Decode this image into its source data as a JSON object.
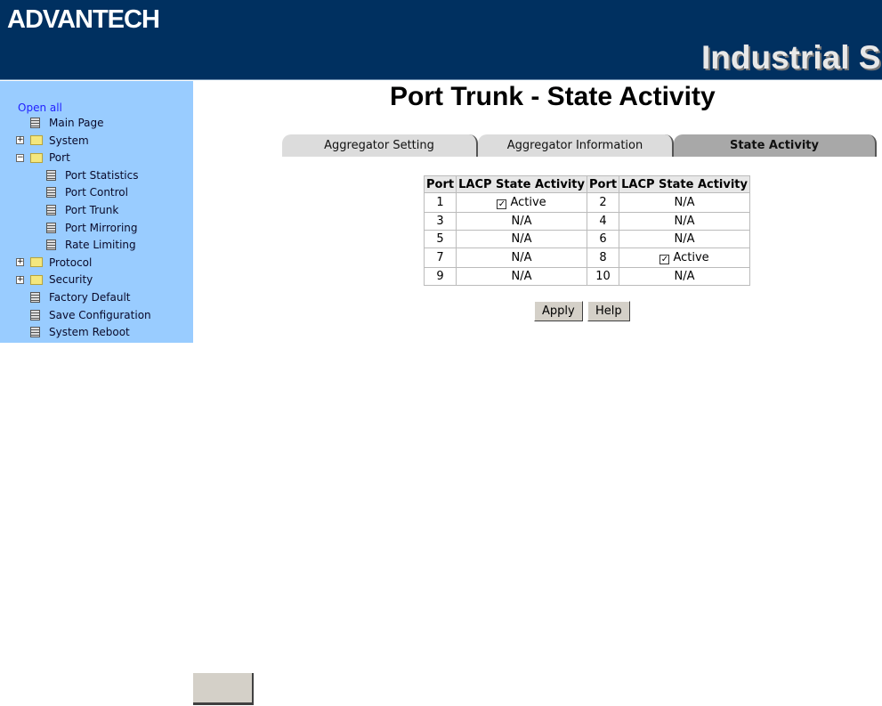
{
  "header": {
    "logo": "ADVANTECH",
    "product": "Industrial S"
  },
  "sidebar": {
    "open_all": "Open all",
    "items": [
      {
        "label": "Main Page",
        "type": "doc",
        "level": 0
      },
      {
        "label": "System",
        "type": "folder",
        "level": 0,
        "expander": "+"
      },
      {
        "label": "Port",
        "type": "folder-open",
        "level": 0,
        "expander": "−"
      },
      {
        "label": "Port Statistics",
        "type": "doc",
        "level": 1
      },
      {
        "label": "Port Control",
        "type": "doc",
        "level": 1
      },
      {
        "label": "Port Trunk",
        "type": "doc",
        "level": 1
      },
      {
        "label": "Port Mirroring",
        "type": "doc",
        "level": 1
      },
      {
        "label": "Rate Limiting",
        "type": "doc",
        "level": 1
      },
      {
        "label": "Protocol",
        "type": "folder",
        "level": 0,
        "expander": "+"
      },
      {
        "label": "Security",
        "type": "folder",
        "level": 0,
        "expander": "+"
      },
      {
        "label": "Factory Default",
        "type": "doc",
        "level": 0
      },
      {
        "label": "Save Configuration",
        "type": "doc",
        "level": 0
      },
      {
        "label": "System Reboot",
        "type": "doc",
        "level": 0
      }
    ]
  },
  "main": {
    "title": "Port Trunk - State Activity",
    "tabs": [
      {
        "label": "Aggregator Setting",
        "active": false
      },
      {
        "label": "Aggregator Information",
        "active": false
      },
      {
        "label": "State Activity",
        "active": true
      }
    ],
    "table": {
      "headers": [
        "Port",
        "LACP State Activity",
        "Port",
        "LACP State Activity"
      ],
      "rows": [
        [
          {
            "port": "1",
            "state": "Active",
            "checked": true
          },
          {
            "port": "2",
            "state": "N/A"
          }
        ],
        [
          {
            "port": "3",
            "state": "N/A"
          },
          {
            "port": "4",
            "state": "N/A"
          }
        ],
        [
          {
            "port": "5",
            "state": "N/A"
          },
          {
            "port": "6",
            "state": "N/A"
          }
        ],
        [
          {
            "port": "7",
            "state": "N/A"
          },
          {
            "port": "8",
            "state": "Active",
            "checked": true
          }
        ],
        [
          {
            "port": "9",
            "state": "N/A"
          },
          {
            "port": "10",
            "state": "N/A"
          }
        ]
      ]
    },
    "apply": "Apply",
    "help": "Help"
  }
}
